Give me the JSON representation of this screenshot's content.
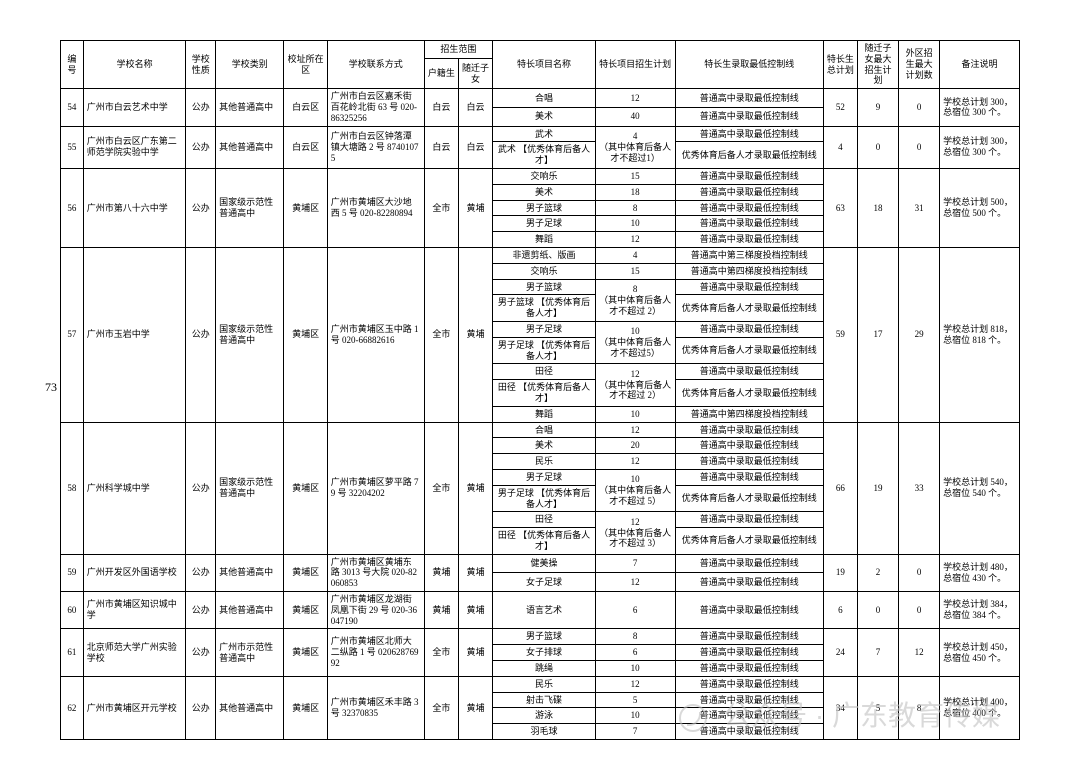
{
  "page_number": "73",
  "headers": {
    "col1": "编号",
    "col2": "学校名称",
    "col3": "学校性质",
    "col4": "学校类别",
    "col5": "校址所在区",
    "col6": "学校联系方式",
    "col7_top": "招生范围",
    "col7a": "户籍生",
    "col7b": "随迁子女",
    "col8": "特长项目名称",
    "col9": "特长项目招生计划",
    "col10": "特长生录取最低控制线",
    "col11": "特长生总计划",
    "col12": "随迁子女最大招生计划",
    "col13": "外区招生最大计划数",
    "col14": "备注说明"
  },
  "rows": [
    {
      "n": "54",
      "school": "广州市白云艺术中学",
      "nature": "公办",
      "kind": "其他普通高中",
      "area": "白云区",
      "contact": "广州市白云区嘉禾街百花岭北街 63 号 020-86325256",
      "huji": "白云",
      "suiqian": "白云",
      "items": [
        {
          "proj": "合唱",
          "plan": "12",
          "line": "普通高中录取最低控制线"
        },
        {
          "proj": "美术",
          "plan": "40",
          "line": "普通高中录取最低控制线"
        }
      ],
      "total": "52",
      "sq": "9",
      "wq": "0",
      "note": "学校总计划 300，总宿位 300 个。"
    },
    {
      "n": "55",
      "school": "广州市白云区广东第二师范学院实验中学",
      "nature": "公办",
      "kind": "其他普通高中",
      "area": "白云区",
      "contact": "广州市白云区钟落潭镇大塘路 2 号 87401075",
      "huji": "白云",
      "suiqian": "白云",
      "items": [
        {
          "proj": "武术",
          "plan": "4",
          "line": "普通高中录取最低控制线",
          "planrow": 2,
          "plantext": "（其中体育后备人才不超过1）"
        },
        {
          "proj": "武术 【优秀体育后备人才】",
          "plan": "",
          "line": "优秀体育后备人才录取最低控制线"
        }
      ],
      "total": "4",
      "sq": "0",
      "wq": "0",
      "note": "学校总计划 300，总宿位 300 个。"
    },
    {
      "n": "56",
      "school": "广州市第八十六中学",
      "nature": "公办",
      "kind": "国家级示范性普通高中",
      "area": "黄埔区",
      "contact": "广州市黄埔区大沙地西 5 号 020-82280894",
      "huji": "全市",
      "suiqian": "黄埔",
      "items": [
        {
          "proj": "交响乐",
          "plan": "15",
          "line": "普通高中录取最低控制线"
        },
        {
          "proj": "美术",
          "plan": "18",
          "line": "普通高中录取最低控制线"
        },
        {
          "proj": "男子篮球",
          "plan": "8",
          "line": "普通高中录取最低控制线"
        },
        {
          "proj": "男子足球",
          "plan": "10",
          "line": "普通高中录取最低控制线"
        },
        {
          "proj": "舞蹈",
          "plan": "12",
          "line": "普通高中录取最低控制线"
        }
      ],
      "total": "63",
      "sq": "18",
      "wq": "31",
      "note": "学校总计划 500，总宿位 500 个。"
    },
    {
      "n": "57",
      "school": "广州市玉岩中学",
      "nature": "公办",
      "kind": "国家级示范性普通高中",
      "area": "黄埔区",
      "contact": "广州市黄埔区玉中路 1 号 020-66882616",
      "huji": "全市",
      "suiqian": "黄埔",
      "items": [
        {
          "proj": "非遗剪纸、版画",
          "plan": "4",
          "line": "普通高中第三梯度投档控制线"
        },
        {
          "proj": "交响乐",
          "plan": "15",
          "line": "普通高中第四梯度投档控制线"
        },
        {
          "proj": "男子篮球",
          "plan": "8",
          "line": "普通高中录取最低控制线",
          "planrow": 2,
          "plantext": "（其中体育后备人才不超过 2）"
        },
        {
          "proj": "男子篮球 【优秀体育后备人才】",
          "plan": "",
          "line": "优秀体育后备人才录取最低控制线"
        },
        {
          "proj": "男子足球",
          "plan": "10",
          "line": "普通高中录取最低控制线",
          "planrow": 2,
          "plantext": "（其中体育后备人才不超过5）"
        },
        {
          "proj": "男子足球 【优秀体育后备人才】",
          "plan": "",
          "line": "优秀体育后备人才录取最低控制线"
        },
        {
          "proj": "田径",
          "plan": "12",
          "line": "普通高中录取最低控制线",
          "planrow": 2,
          "plantext": "（其中体育后备人才不超过 2）"
        },
        {
          "proj": "田径 【优秀体育后备人才】",
          "plan": "",
          "line": "优秀体育后备人才录取最低控制线"
        },
        {
          "proj": "舞蹈",
          "plan": "10",
          "line": "普通高中第四梯度投档控制线"
        }
      ],
      "total": "59",
      "sq": "17",
      "wq": "29",
      "note": "学校总计划 818，总宿位 818 个。"
    },
    {
      "n": "58",
      "school": "广州科学城中学",
      "nature": "公办",
      "kind": "国家级示范性普通高中",
      "area": "黄埔区",
      "contact": "广州市黄埔区萝平路 79 号 32204202",
      "huji": "全市",
      "suiqian": "黄埔",
      "items": [
        {
          "proj": "合唱",
          "plan": "12",
          "line": "普通高中录取最低控制线"
        },
        {
          "proj": "美术",
          "plan": "20",
          "line": "普通高中录取最低控制线"
        },
        {
          "proj": "民乐",
          "plan": "12",
          "line": "普通高中录取最低控制线"
        },
        {
          "proj": "男子足球",
          "plan": "10",
          "line": "普通高中录取最低控制线",
          "planrow": 2,
          "plantext": "（其中体育后备人才不超过 5）"
        },
        {
          "proj": "男子足球 【优秀体育后备人才】",
          "plan": "",
          "line": "优秀体育后备人才录取最低控制线"
        },
        {
          "proj": "田径",
          "plan": "12",
          "line": "普通高中录取最低控制线",
          "planrow": 2,
          "plantext": "（其中体育后备人才不超过 3）"
        },
        {
          "proj": "田径 【优秀体育后备人才】",
          "plan": "",
          "line": "优秀体育后备人才录取最低控制线"
        }
      ],
      "total": "66",
      "sq": "19",
      "wq": "33",
      "note": "学校总计划 540，总宿位 540 个。"
    },
    {
      "n": "59",
      "school": "广州开发区外国语学校",
      "nature": "公办",
      "kind": "其他普通高中",
      "area": "黄埔区",
      "contact": "广州市黄埔区黄埔东路 3013 号大院 020-82060853",
      "huji": "黄埔",
      "suiqian": "黄埔",
      "items": [
        {
          "proj": "健美操",
          "plan": "7",
          "line": "普通高中录取最低控制线"
        },
        {
          "proj": "女子足球",
          "plan": "12",
          "line": "普通高中录取最低控制线"
        }
      ],
      "total": "19",
      "sq": "2",
      "wq": "0",
      "note": "学校总计划 480，总宿位 430 个。"
    },
    {
      "n": "60",
      "school": "广州市黄埔区知识城中学",
      "nature": "公办",
      "kind": "其他普通高中",
      "area": "黄埔区",
      "contact": "广州市黄埔区龙湖街凤凰下街 29 号 020-36047190",
      "huji": "黄埔",
      "suiqian": "黄埔",
      "items": [
        {
          "proj": "语言艺术",
          "plan": "6",
          "line": "普通高中录取最低控制线"
        }
      ],
      "total": "6",
      "sq": "0",
      "wq": "0",
      "note": "学校总计划 384，总宿位 384 个。"
    },
    {
      "n": "61",
      "school": "北京师范大学广州实验学校",
      "nature": "公办",
      "kind": "广州市示范性普通高中",
      "area": "黄埔区",
      "contact": "广州市黄埔区北师大二纵路 1 号 02062876992",
      "huji": "全市",
      "suiqian": "黄埔",
      "items": [
        {
          "proj": "男子篮球",
          "plan": "8",
          "line": "普通高中录取最低控制线"
        },
        {
          "proj": "女子排球",
          "plan": "6",
          "line": "普通高中录取最低控制线"
        },
        {
          "proj": "跳绳",
          "plan": "10",
          "line": "普通高中录取最低控制线"
        }
      ],
      "total": "24",
      "sq": "7",
      "wq": "12",
      "note": "学校总计划 450，总宿位 450 个。"
    },
    {
      "n": "62",
      "school": "广州市黄埔区开元学校",
      "nature": "公办",
      "kind": "其他普通高中",
      "area": "黄埔区",
      "contact": "广州市黄埔区禾丰路 3 号 32370835",
      "huji": "全市",
      "suiqian": "黄埔",
      "items": [
        {
          "proj": "民乐",
          "plan": "12",
          "line": "普通高中录取最低控制线"
        },
        {
          "proj": "射击飞碟",
          "plan": "5",
          "line": "普通高中录取最低控制线"
        },
        {
          "proj": "游泳",
          "plan": "10",
          "line": "普通高中录取最低控制线"
        },
        {
          "proj": "羽毛球",
          "plan": "7",
          "line": "普通高中录取最低控制线"
        }
      ],
      "total": "34",
      "sq": "5",
      "wq": "8",
      "note": "学校总计划 400，总宿位 400 个。"
    }
  ],
  "watermark": "公众号 · 广东教育传媒"
}
